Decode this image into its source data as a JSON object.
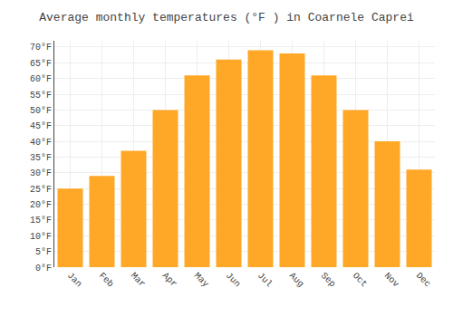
{
  "chart_data": {
    "type": "bar",
    "title": "Average monthly temperatures (°F ) in Coarnele Caprei",
    "categories": [
      "Jan",
      "Feb",
      "Mar",
      "Apr",
      "May",
      "Jun",
      "Jul",
      "Aug",
      "Sep",
      "Oct",
      "Nov",
      "Dec"
    ],
    "values": [
      25,
      29,
      37,
      50,
      61,
      66,
      69,
      68,
      61,
      50,
      40,
      31
    ],
    "color": "#FFA726",
    "ylim": [
      0,
      72
    ],
    "yticks": [
      {
        "value": 0,
        "label": "0°F"
      },
      {
        "value": 5,
        "label": "5°F"
      },
      {
        "value": 10,
        "label": "10°F"
      },
      {
        "value": 15,
        "label": "15°F"
      },
      {
        "value": 20,
        "label": "20°F"
      },
      {
        "value": 25,
        "label": "25°F"
      },
      {
        "value": 30,
        "label": "30°F"
      },
      {
        "value": 35,
        "label": "35°F"
      },
      {
        "value": 40,
        "label": "40°F"
      },
      {
        "value": 45,
        "label": "45°F"
      },
      {
        "value": 50,
        "label": "50°F"
      },
      {
        "value": 55,
        "label": "55°F"
      },
      {
        "value": 60,
        "label": "60°F"
      },
      {
        "value": 65,
        "label": "65°F"
      },
      {
        "value": 70,
        "label": "70°F"
      }
    ],
    "grid": true
  }
}
